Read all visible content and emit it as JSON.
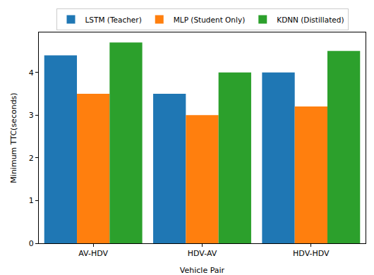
{
  "chart_data": {
    "type": "bar",
    "x_label": "Vehicle Pair",
    "y_label": "Minimum TTC(seconds)",
    "categories": [
      "AV-HDV",
      "HDV-AV",
      "HDV-HDV"
    ],
    "series": [
      {
        "name": "LSTM (Teacher)",
        "color": "#1f77b4",
        "values": [
          4.4,
          3.5,
          4.0
        ]
      },
      {
        "name": "MLP (Student Only)",
        "color": "#ff7f0e",
        "values": [
          3.5,
          3.0,
          3.2
        ]
      },
      {
        "name": "KDNN (Distillated)",
        "color": "#2ca02c",
        "values": [
          4.7,
          4.0,
          4.5
        ]
      }
    ],
    "ylim": [
      0,
      4.935
    ],
    "yticks": [
      0,
      1,
      2,
      3,
      4
    ],
    "grid": false,
    "legend": "top"
  }
}
